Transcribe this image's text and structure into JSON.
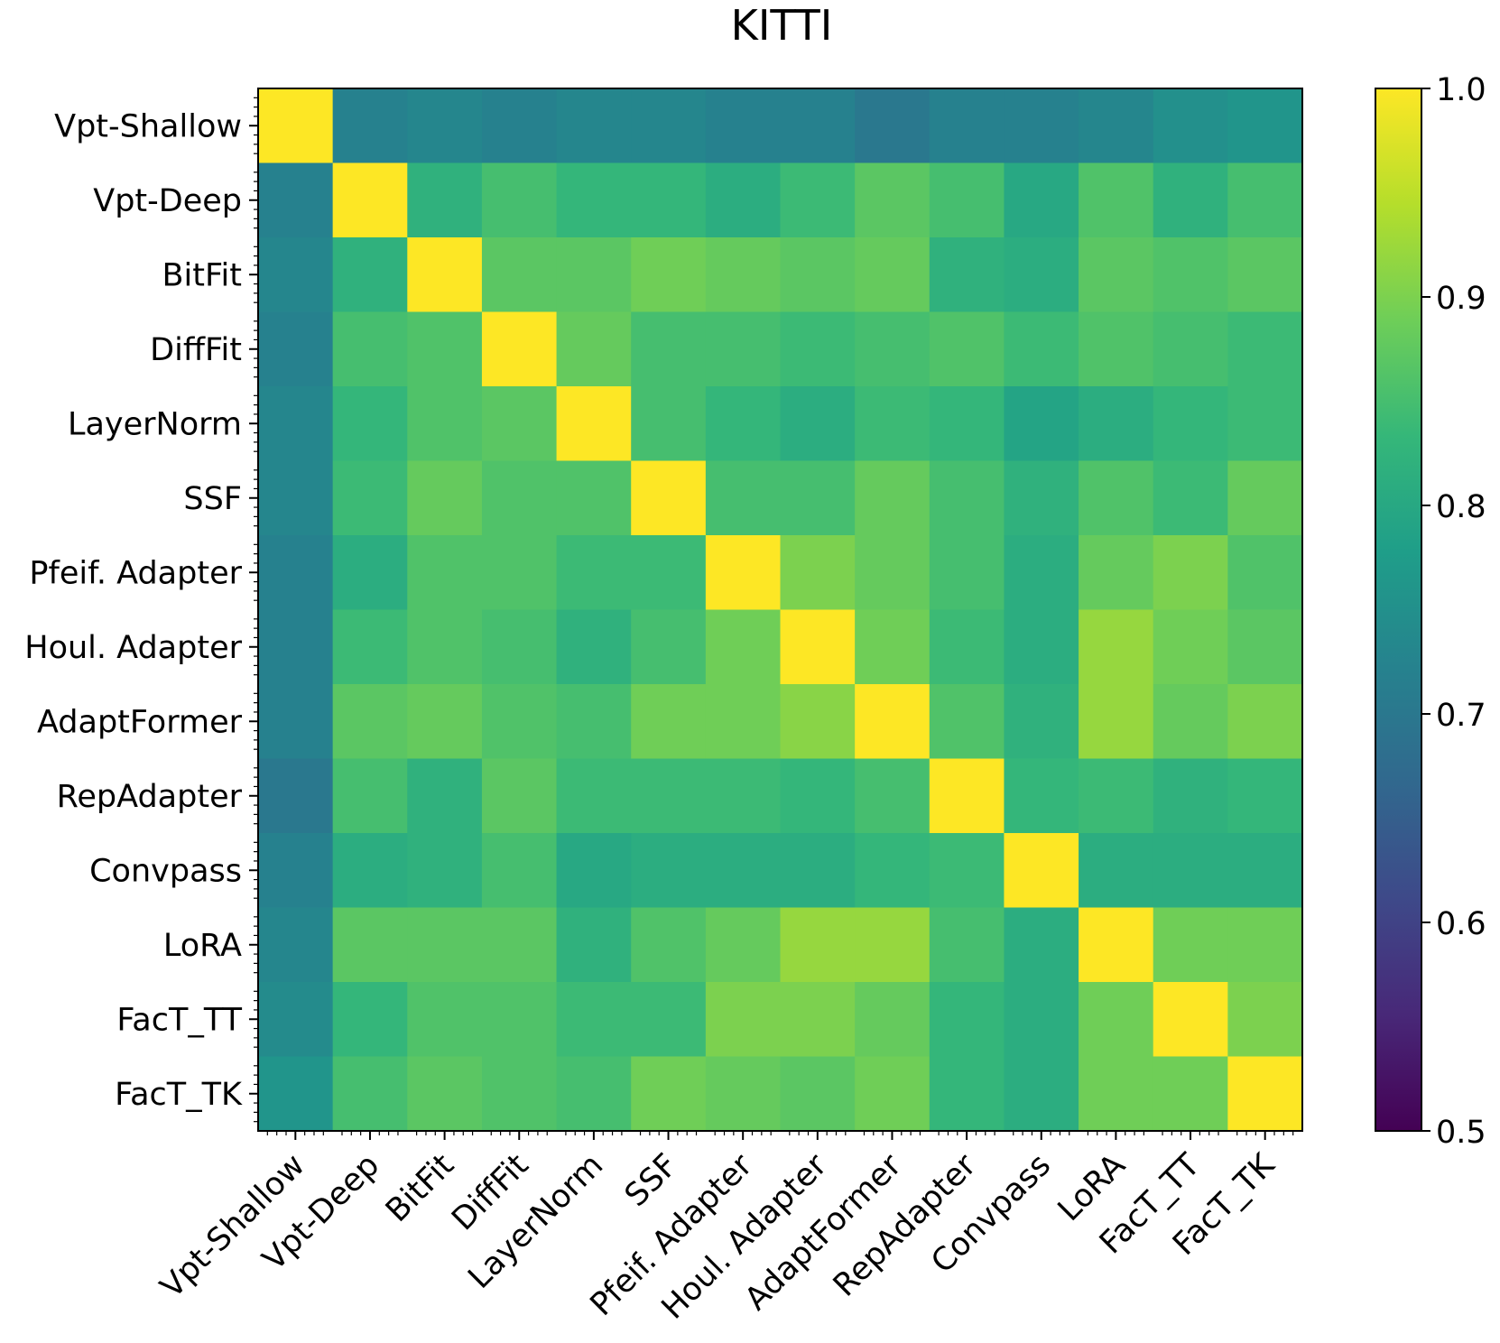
{
  "chart_data": {
    "type": "heatmap",
    "title": "KITTI",
    "xlabel": "",
    "ylabel": "",
    "labels": [
      "Vpt-Shallow",
      "Vpt-Deep",
      "BitFit",
      "DiffFit",
      "LayerNorm",
      "SSF",
      "Pfeif. Adapter",
      "Houl. Adapter",
      "AdaptFormer",
      "RepAdapter",
      "Convpass",
      "LoRA",
      "FacT_TT",
      "FacT_TK"
    ],
    "values": [
      [
        1.0,
        0.72,
        0.73,
        0.72,
        0.73,
        0.73,
        0.72,
        0.72,
        0.7,
        0.72,
        0.72,
        0.73,
        0.75,
        0.76
      ],
      [
        0.72,
        1.0,
        0.82,
        0.85,
        0.83,
        0.83,
        0.81,
        0.84,
        0.87,
        0.85,
        0.8,
        0.86,
        0.82,
        0.85
      ],
      [
        0.73,
        0.82,
        1.0,
        0.87,
        0.87,
        0.89,
        0.88,
        0.87,
        0.88,
        0.82,
        0.81,
        0.87,
        0.86,
        0.87
      ],
      [
        0.72,
        0.85,
        0.86,
        1.0,
        0.88,
        0.85,
        0.85,
        0.84,
        0.85,
        0.86,
        0.84,
        0.86,
        0.85,
        0.84
      ],
      [
        0.73,
        0.83,
        0.86,
        0.87,
        1.0,
        0.85,
        0.83,
        0.81,
        0.84,
        0.83,
        0.79,
        0.81,
        0.83,
        0.84
      ],
      [
        0.73,
        0.84,
        0.88,
        0.86,
        0.86,
        1.0,
        0.85,
        0.85,
        0.88,
        0.85,
        0.82,
        0.86,
        0.84,
        0.88
      ],
      [
        0.72,
        0.81,
        0.86,
        0.86,
        0.84,
        0.84,
        1.0,
        0.9,
        0.88,
        0.85,
        0.81,
        0.88,
        0.9,
        0.86
      ],
      [
        0.72,
        0.84,
        0.86,
        0.85,
        0.82,
        0.85,
        0.89,
        1.0,
        0.89,
        0.84,
        0.81,
        0.92,
        0.89,
        0.87
      ],
      [
        0.72,
        0.87,
        0.88,
        0.86,
        0.85,
        0.89,
        0.89,
        0.91,
        1.0,
        0.86,
        0.82,
        0.92,
        0.88,
        0.9
      ],
      [
        0.7,
        0.85,
        0.82,
        0.87,
        0.84,
        0.84,
        0.84,
        0.83,
        0.85,
        1.0,
        0.83,
        0.84,
        0.82,
        0.83
      ],
      [
        0.72,
        0.81,
        0.82,
        0.85,
        0.8,
        0.81,
        0.81,
        0.81,
        0.83,
        0.84,
        1.0,
        0.81,
        0.81,
        0.81
      ],
      [
        0.73,
        0.87,
        0.87,
        0.87,
        0.82,
        0.86,
        0.88,
        0.92,
        0.92,
        0.85,
        0.81,
        1.0,
        0.89,
        0.89
      ],
      [
        0.74,
        0.83,
        0.86,
        0.86,
        0.84,
        0.84,
        0.9,
        0.9,
        0.88,
        0.83,
        0.81,
        0.89,
        1.0,
        0.9
      ],
      [
        0.76,
        0.85,
        0.87,
        0.86,
        0.85,
        0.89,
        0.88,
        0.87,
        0.89,
        0.83,
        0.81,
        0.89,
        0.89,
        1.0
      ]
    ],
    "colormap": "viridis",
    "colorbar": {
      "vmin": 0.5,
      "vmax": 1.0,
      "ticks": [
        0.5,
        0.6,
        0.7,
        0.8,
        0.9,
        1.0
      ],
      "tick_labels": [
        "0.5",
        "0.6",
        "0.7",
        "0.8",
        "0.9",
        "1.0"
      ]
    },
    "colormap_stops": [
      "#440154",
      "#482878",
      "#3e4989",
      "#31688e",
      "#26828e",
      "#1f9e89",
      "#35b779",
      "#6ece58",
      "#b5de2b",
      "#fde725"
    ]
  }
}
